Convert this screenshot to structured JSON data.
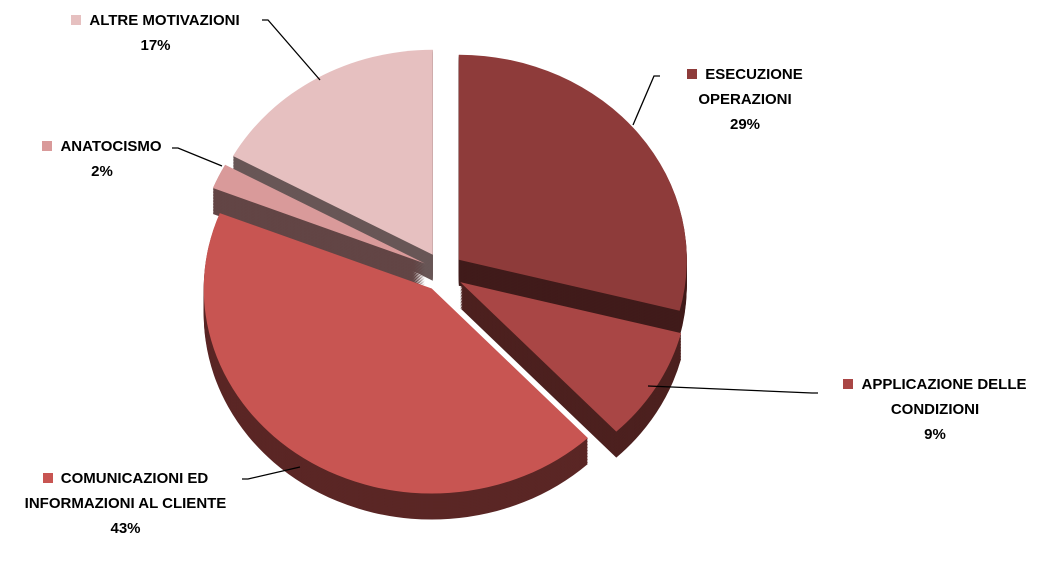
{
  "chart_data": {
    "type": "pie",
    "categories": [
      "ESECUZIONE OPERAZIONI",
      "APPLICAZIONE DELLE CONDIZIONI",
      "COMUNICAZIONI ED INFORMAZIONI AL CLIENTE",
      "ANATOCISMO",
      "ALTRE MOTIVAZIONI"
    ],
    "values": [
      29,
      9,
      43,
      2,
      17
    ],
    "value_labels": [
      "29%",
      "9%",
      "43%",
      "2%",
      "17%"
    ],
    "colors": [
      "#8e3b3a",
      "#a94645",
      "#c85552",
      "#d99a9a",
      "#e6c0c0"
    ]
  }
}
